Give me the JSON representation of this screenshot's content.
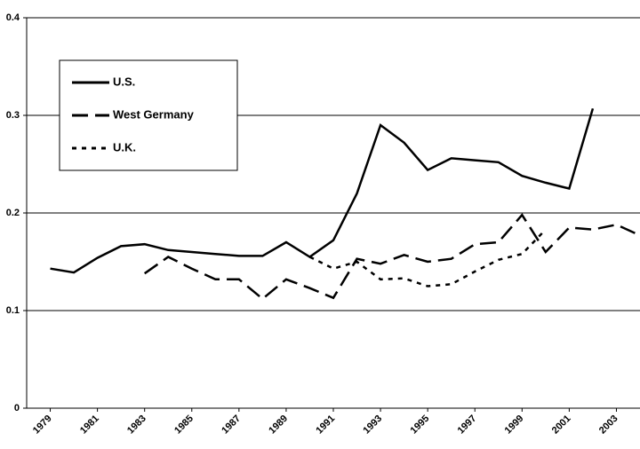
{
  "chart_data": {
    "type": "line",
    "x": [
      1979,
      1980,
      1981,
      1982,
      1983,
      1984,
      1985,
      1986,
      1987,
      1988,
      1989,
      1990,
      1991,
      1992,
      1993,
      1994,
      1995,
      1996,
      1997,
      1998,
      1999,
      2000,
      2001,
      2002,
      2003,
      2004
    ],
    "series": [
      {
        "name": "U.S.",
        "color": "#000000",
        "dash": "solid",
        "values": [
          0.143,
          0.139,
          0.154,
          0.166,
          0.168,
          0.162,
          0.16,
          0.158,
          0.156,
          0.156,
          0.17,
          0.155,
          0.172,
          0.22,
          0.29,
          0.272,
          0.244,
          0.256,
          0.254,
          0.252,
          0.238,
          0.231,
          0.225,
          0.307,
          null,
          null
        ]
      },
      {
        "name": "West Germany",
        "color": "#000000",
        "dash": "long",
        "values": [
          null,
          null,
          null,
          null,
          0.138,
          0.155,
          0.143,
          0.132,
          0.132,
          0.112,
          0.132,
          0.123,
          0.113,
          0.153,
          0.148,
          0.157,
          0.15,
          0.153,
          0.168,
          0.17,
          0.198,
          0.16,
          0.185,
          0.183,
          0.188,
          0.177
        ]
      },
      {
        "name": "U.K.",
        "color": "#000000",
        "dash": "short",
        "values": [
          null,
          null,
          null,
          null,
          null,
          null,
          null,
          null,
          null,
          null,
          null,
          0.155,
          0.143,
          0.15,
          0.132,
          0.133,
          0.125,
          0.127,
          0.14,
          0.152,
          0.158,
          0.183,
          null,
          null,
          null,
          null
        ]
      }
    ],
    "xlim": [
      1978,
      2004
    ],
    "xticks": [
      1979,
      1981,
      1983,
      1985,
      1987,
      1989,
      1991,
      1993,
      1995,
      1997,
      1999,
      2001,
      2003
    ],
    "ylim": [
      0,
      0.4
    ],
    "yticks": [
      0,
      0.1,
      0.2,
      0.3,
      0.4
    ],
    "grid": true,
    "legend": "upper left"
  }
}
